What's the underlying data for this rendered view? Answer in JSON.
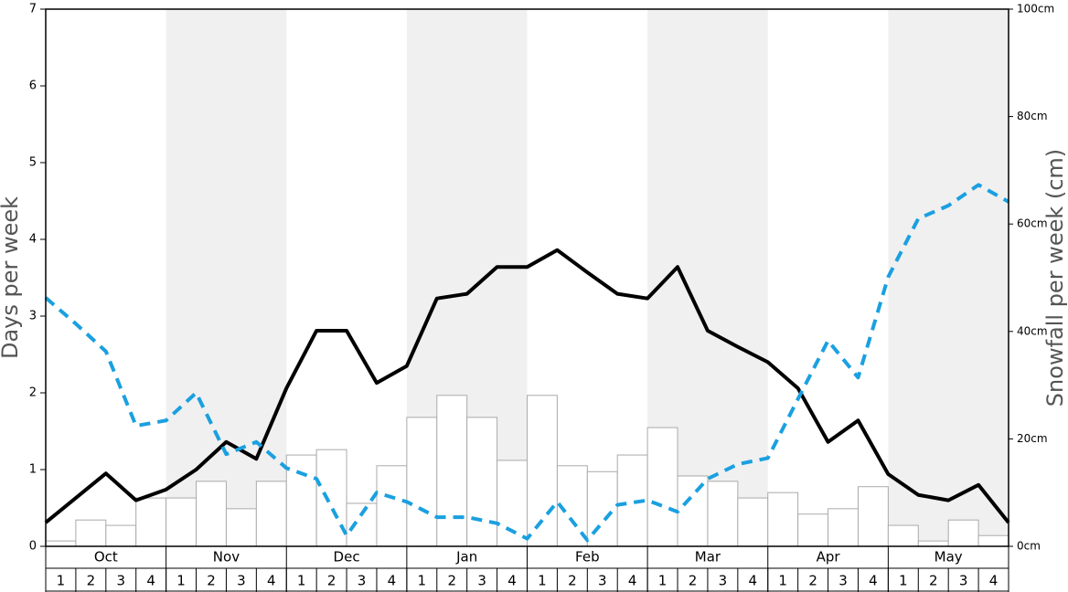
{
  "chart_data": {
    "type": "bar-line",
    "y_label": "Days per week",
    "y2_label": "Snowfall per week (cm)",
    "months": [
      "Oct",
      "Nov",
      "Dec",
      "Jan",
      "Feb",
      "Mar",
      "Apr",
      "May"
    ],
    "weeks": [
      "1",
      "2",
      "3",
      "4"
    ],
    "ylim": [
      0,
      7
    ],
    "yticks": [
      0,
      1,
      2,
      3,
      4,
      5,
      6,
      7
    ],
    "y2lim": [
      0,
      100
    ],
    "y2ticks": [
      {
        "value": 0,
        "label": "0cm"
      },
      {
        "value": 20,
        "label": "20cm"
      },
      {
        "value": 40,
        "label": "40cm"
      },
      {
        "value": 60,
        "label": "60cm"
      },
      {
        "value": 80,
        "label": "80cm"
      },
      {
        "value": 100,
        "label": "100cm"
      }
    ],
    "bars": {
      "axis": "y2",
      "color": "#ffffff",
      "values": [
        1.0,
        4.9,
        3.9,
        9.0,
        9.0,
        12.1,
        7.0,
        12.1,
        17.0,
        18.0,
        8.0,
        15.0,
        24.0,
        28.1,
        24.0,
        16.0,
        28.1,
        15.0,
        13.9,
        17.0,
        22.1,
        13.1,
        12.1,
        9.0,
        10.0,
        6.0,
        7.0,
        11.1,
        3.9,
        1.0,
        4.9,
        2.0
      ]
    },
    "lines": [
      {
        "color": "#000000",
        "dashed": false,
        "values": [
          0.31,
          0.63,
          0.95,
          0.6,
          0.74,
          1.0,
          1.36,
          1.14,
          2.06,
          2.81,
          2.81,
          2.13,
          2.35,
          3.23,
          3.29,
          3.64,
          3.64,
          3.86,
          3.57,
          3.29,
          3.23,
          3.64,
          2.81,
          2.6,
          2.4,
          2.06,
          1.36,
          1.64,
          0.94,
          0.67,
          0.6,
          0.8,
          0.31
        ]
      },
      {
        "color": "#1aa0e0",
        "dashed": true,
        "values": [
          3.24,
          2.9,
          2.54,
          1.57,
          1.64,
          2.0,
          1.2,
          1.36,
          1.02,
          0.88,
          0.14,
          0.7,
          0.58,
          0.38,
          0.38,
          0.3,
          0.1,
          0.58,
          0.08,
          0.54,
          0.6,
          0.45,
          0.88,
          1.07,
          1.15,
          1.92,
          2.68,
          2.2,
          3.51,
          4.27,
          4.44,
          4.71,
          4.49
        ]
      }
    ],
    "shade_color": "#f0f0f0"
  }
}
